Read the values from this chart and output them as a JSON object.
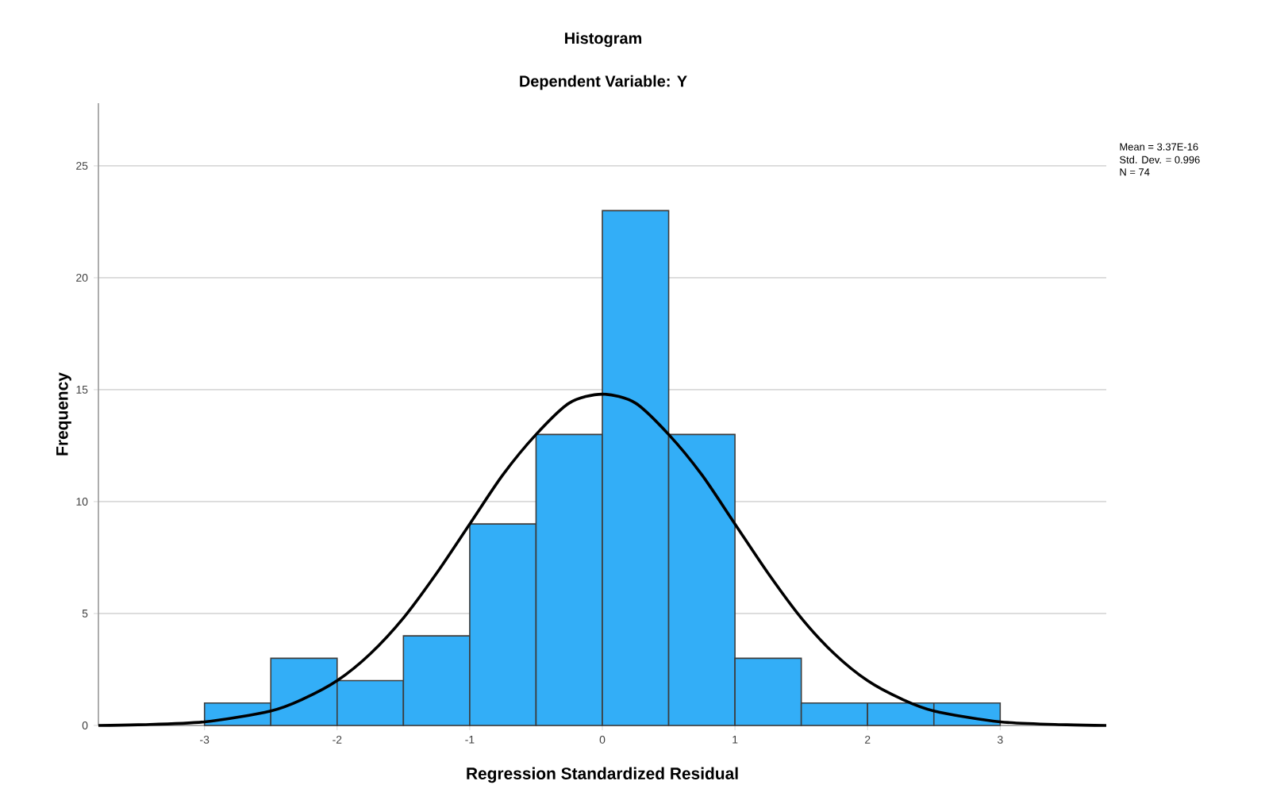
{
  "chart_data": {
    "type": "histogram",
    "title": "Histogram",
    "subtitle": "Dependent Variable: Y",
    "xlabel": "Regression Standardized Residual",
    "ylabel": "Frequency",
    "series": [
      {
        "color": "#33aef7",
        "bins": [
          -3,
          -2.5,
          -2,
          -1.5,
          -1,
          -0.5,
          0,
          0.5,
          1,
          1.5,
          2,
          2.5,
          3
        ],
        "values": [
          1,
          3,
          2,
          4,
          9,
          13,
          23,
          13,
          3,
          1,
          1,
          1
        ]
      },
      {
        "type": "line",
        "color": "#000000",
        "marker": "none",
        "x": [
          -3.8,
          -3.5,
          -3,
          -2.5,
          -2.25,
          -2,
          -1.75,
          -1.5,
          -1.25,
          -1,
          -0.75,
          -0.5,
          -0.25,
          0,
          0.25,
          0.5,
          0.75,
          1,
          1.25,
          1.5,
          1.75,
          2,
          2.25,
          2.5,
          3,
          3.5,
          3.8
        ],
        "values": [
          0.0,
          0.03,
          0.16,
          0.65,
          1.2,
          2.0,
          3.2,
          4.8,
          6.8,
          9.0,
          11.2,
          13.0,
          14.4,
          14.8,
          14.4,
          13.0,
          11.2,
          9.0,
          6.8,
          4.8,
          3.2,
          2.0,
          1.2,
          0.65,
          0.16,
          0.03,
          0.0
        ]
      }
    ],
    "xlim": [
      -3.8,
      3.8
    ],
    "ylim": [
      0,
      27.8
    ],
    "xticks": [
      -3,
      -2,
      -1,
      0,
      1,
      2,
      3
    ],
    "yticks": [
      0,
      5,
      10,
      15,
      20,
      25
    ],
    "grid": "y",
    "annotations": [
      "Mean = 3.37E-16",
      "Std. Dev. = 0.996",
      "N = 74"
    ]
  }
}
